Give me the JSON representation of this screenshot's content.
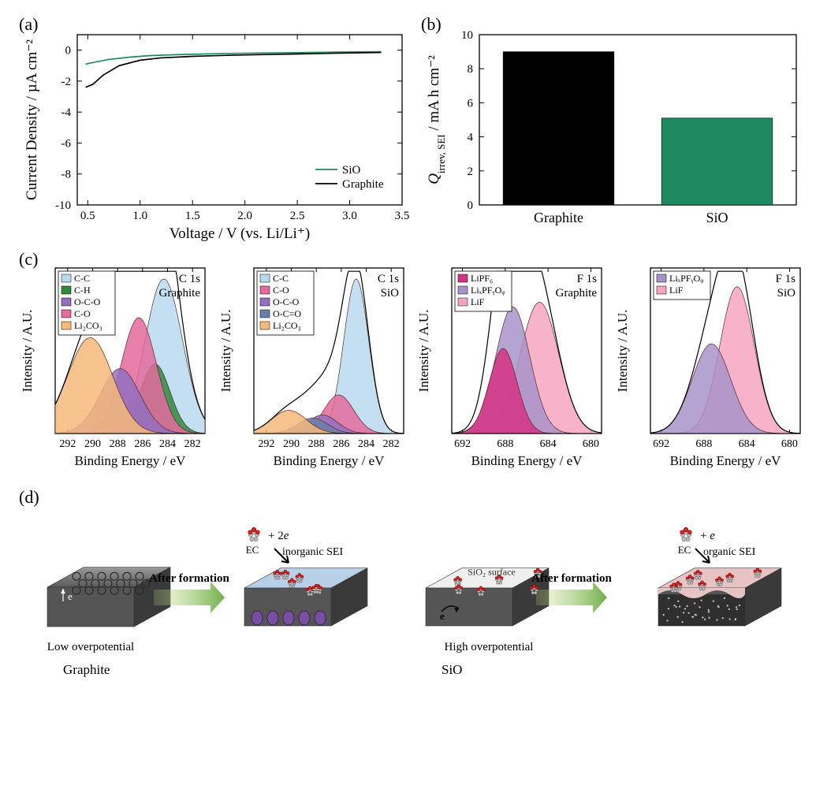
{
  "panel_labels": {
    "a": "(a)",
    "b": "(b)",
    "c": "(c)",
    "d": "(d)"
  },
  "colors": {
    "SiO": "#1f8a5f",
    "Graphite": "#000000",
    "axis": "#000000",
    "peak_cc": "#b9d9ee",
    "peak_ch": "#2e8b3d",
    "peak_oco": "#9370c0",
    "peak_co": "#e36b9d",
    "peak_occo": "#6b7fa8",
    "peak_li2co3": "#f4b97a",
    "peak_lipf6": "#d63384",
    "peak_lixpf": "#a893c9",
    "peak_lif": "#f4a6c0",
    "schematic_sei_blue": "#b7d0e8",
    "schematic_sei_pink": "#e8c3c3",
    "arrow_green1": "#c9de8f",
    "arrow_green2": "#6fae4a"
  },
  "panel_a": {
    "type": "line",
    "xlabel": "Voltage / V (vs. Li/Li⁺)",
    "ylabel": "Current Density / µA cm⁻²",
    "xlim": [
      0.4,
      3.5
    ],
    "ylim": [
      -10,
      1
    ],
    "xticks": [
      0.5,
      1.0,
      1.5,
      2.0,
      2.5,
      3.0,
      3.5
    ],
    "yticks": [
      -10,
      -8,
      -6,
      -4,
      -2,
      0
    ],
    "legend": [
      "SiO",
      "Graphite"
    ],
    "series": {
      "SiO": [
        [
          0.48,
          -0.9
        ],
        [
          0.55,
          -0.8
        ],
        [
          0.7,
          -0.6
        ],
        [
          0.9,
          -0.45
        ],
        [
          1.1,
          -0.35
        ],
        [
          1.4,
          -0.28
        ],
        [
          1.8,
          -0.22
        ],
        [
          2.2,
          -0.18
        ],
        [
          2.6,
          -0.15
        ],
        [
          3.0,
          -0.12
        ],
        [
          3.3,
          -0.1
        ]
      ],
      "Graphite": [
        [
          0.48,
          -2.4
        ],
        [
          0.55,
          -2.2
        ],
        [
          0.65,
          -1.6
        ],
        [
          0.8,
          -1.0
        ],
        [
          1.0,
          -0.65
        ],
        [
          1.2,
          -0.5
        ],
        [
          1.5,
          -0.4
        ],
        [
          1.9,
          -0.32
        ],
        [
          2.3,
          -0.27
        ],
        [
          2.7,
          -0.22
        ],
        [
          3.0,
          -0.18
        ],
        [
          3.3,
          -0.15
        ]
      ]
    }
  },
  "panel_b": {
    "type": "bar",
    "ylabel_html": "Q_irrev, SEI / mA h cm⁻²",
    "ylim": [
      0,
      10
    ],
    "yticks": [
      0,
      2,
      4,
      6,
      8,
      10
    ],
    "bars": [
      {
        "label": "Graphite",
        "value": 9.0,
        "fill": "#000000"
      },
      {
        "label": "SiO",
        "value": 5.1,
        "fill": "#1f8a5f"
      }
    ]
  },
  "panel_c": {
    "ylabel": "Intensity / A.U.",
    "xlabel": "Binding Energy / eV",
    "subplots": [
      {
        "title_right": "C 1s",
        "title_right2": "Graphite",
        "xlim": [
          293,
          281
        ],
        "xticks": [
          292,
          290,
          288,
          286,
          284,
          282
        ],
        "legend": [
          [
            "C-C",
            "#b9d9ee"
          ],
          [
            "C-H",
            "#2e8b3d"
          ],
          [
            "O-C-O",
            "#9370c0"
          ],
          [
            "C-O",
            "#e36b9d"
          ],
          [
            "Li₂CO₃",
            "#f4b97a"
          ]
        ],
        "peaks": [
          {
            "c": 284.3,
            "h": 1.0,
            "w": 1.5,
            "fill": "#b9d9ee"
          },
          {
            "c": 285.0,
            "h": 0.45,
            "w": 1.2,
            "fill": "#2e8b3d"
          },
          {
            "c": 286.3,
            "h": 0.75,
            "w": 1.4,
            "fill": "#e36b9d"
          },
          {
            "c": 287.8,
            "h": 0.42,
            "w": 1.6,
            "fill": "#9370c0"
          },
          {
            "c": 290.2,
            "h": 0.62,
            "w": 1.8,
            "fill": "#f4b97a"
          }
        ]
      },
      {
        "title_right": "C 1s",
        "title_right2": "SiO",
        "xlim": [
          293,
          281
        ],
        "xticks": [
          292,
          290,
          288,
          286,
          284,
          282
        ],
        "legend": [
          [
            "C-C",
            "#b9d9ee"
          ],
          [
            "C-O",
            "#e36b9d"
          ],
          [
            "O-C-O",
            "#9370c0"
          ],
          [
            "O-C=O",
            "#6b7fa8"
          ],
          [
            "Li₂CO₃",
            "#f4b97a"
          ]
        ],
        "peaks": [
          {
            "c": 284.8,
            "h": 1.0,
            "w": 1.0,
            "fill": "#b9d9ee"
          },
          {
            "c": 286.2,
            "h": 0.25,
            "w": 1.2,
            "fill": "#e36b9d"
          },
          {
            "c": 287.5,
            "h": 0.12,
            "w": 1.2,
            "fill": "#9370c0"
          },
          {
            "c": 288.3,
            "h": 0.1,
            "w": 1.2,
            "fill": "#6b7fa8"
          },
          {
            "c": 290.2,
            "h": 0.15,
            "w": 1.4,
            "fill": "#f4b97a"
          }
        ]
      },
      {
        "title_right": "F 1s",
        "title_right2": "Graphite",
        "xlim": [
          693,
          679
        ],
        "xticks": [
          692,
          688,
          684,
          680
        ],
        "legend": [
          [
            "LiPF₆",
            "#d63384"
          ],
          [
            "LiₓPFᵧOᵩ",
            "#a893c9"
          ],
          [
            "LiF",
            "#f4a6c0"
          ]
        ],
        "peaks": [
          {
            "c": 684.8,
            "h": 0.85,
            "w": 1.8,
            "fill": "#f4a6c0"
          },
          {
            "c": 687.3,
            "h": 0.82,
            "w": 1.6,
            "fill": "#a893c9"
          },
          {
            "c": 688.2,
            "h": 0.55,
            "w": 1.3,
            "fill": "#d63384"
          }
        ]
      },
      {
        "title_right": "F 1s",
        "title_right2": "SiO",
        "xlim": [
          693,
          679
        ],
        "xticks": [
          692,
          688,
          684,
          680
        ],
        "legend": [
          [
            "LiₓPFᵧOᵩ",
            "#a893c9"
          ],
          [
            "LiF",
            "#f4a6c0"
          ]
        ],
        "peaks": [
          {
            "c": 684.9,
            "h": 0.95,
            "w": 1.6,
            "fill": "#f4a6c0"
          },
          {
            "c": 687.3,
            "h": 0.58,
            "w": 1.8,
            "fill": "#a893c9"
          }
        ]
      }
    ]
  },
  "panel_d": {
    "graphite_label": "Graphite",
    "sio_label": "SiO",
    "low_overpot": "Low overpotential",
    "high_overpot": "High overpotential",
    "after_formation": "After formation",
    "ec_label": "EC",
    "plus2e": "+ 2e",
    "pluse": "+ e",
    "inorg": "inorganic  SEI",
    "org": "organic SEI",
    "sio2_surface": "SiO₂ surface"
  }
}
